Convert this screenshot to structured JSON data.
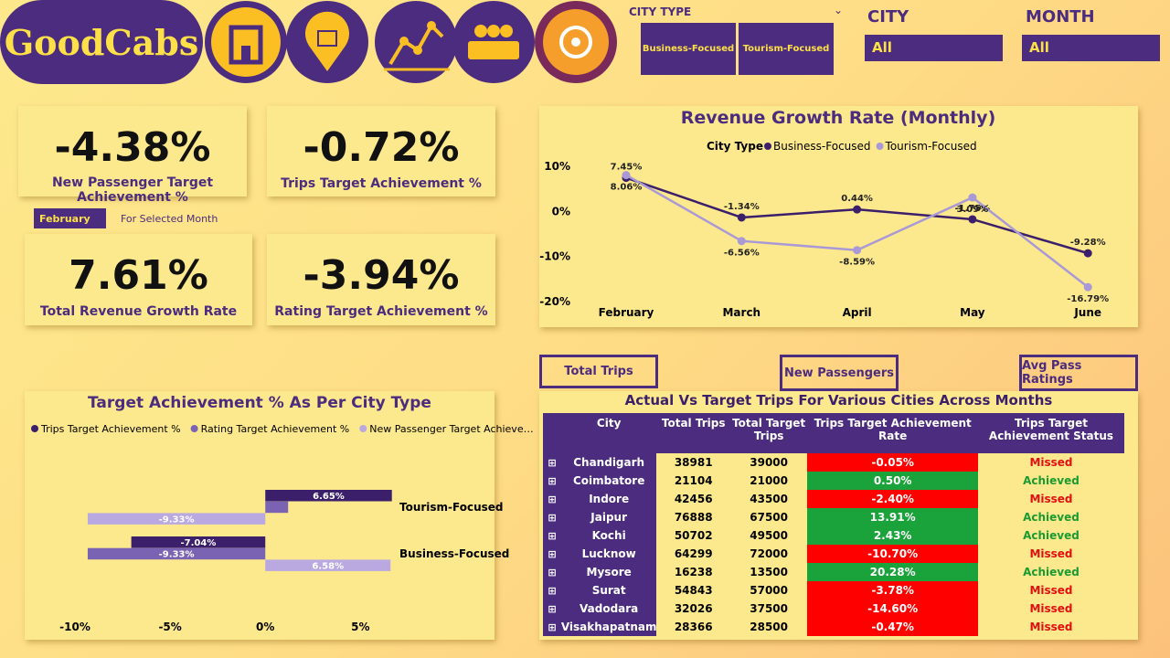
{
  "header": {
    "logo": "GoodCabs"
  },
  "filters": {
    "city_type_label": "CITY TYPE",
    "city_type_options": [
      "Business-Focused",
      "Tourism-Focused"
    ],
    "city_label": "CITY",
    "city_value": "All",
    "month_label": "MONTH",
    "month_value": "All",
    "selected_month": "February",
    "selected_month_note": "For Selected Month"
  },
  "kpis": [
    {
      "value": "-4.38%",
      "label": "New Passenger Target Achievement %"
    },
    {
      "value": "-0.72%",
      "label": "Trips Target Achievement %"
    },
    {
      "value": "7.61%",
      "label": "Total Revenue Growth Rate"
    },
    {
      "value": "-3.94%",
      "label": "Rating Target Achievement %"
    }
  ],
  "buttons": [
    "Total Trips",
    "New Passengers",
    "Avg Pass Ratings"
  ],
  "chart_data": [
    {
      "type": "line",
      "title": "Revenue Growth Rate (Monthly)",
      "legend_title": "City Type",
      "categories": [
        "February",
        "March",
        "April",
        "May",
        "June"
      ],
      "series": [
        {
          "name": "Business-Focused",
          "color": "#3b1f6b",
          "values": [
            7.45,
            -1.34,
            0.44,
            -1.75,
            -9.28
          ],
          "value_labels": [
            "7.45%",
            "-1.34%",
            "0.44%",
            "-1.75%",
            "-9.28%"
          ]
        },
        {
          "name": "Tourism-Focused",
          "color": "#a999d6",
          "values": [
            8.06,
            -6.56,
            -8.59,
            3.09,
            -16.79
          ],
          "value_labels": [
            "8.06%",
            "-6.56%",
            "-8.59%",
            "3.09%",
            "-16.79%"
          ]
        }
      ],
      "ylim": [
        -20,
        10
      ],
      "yticks": [
        {
          "value": -20,
          "label": "-20%"
        },
        {
          "value": -10,
          "label": "-10%"
        },
        {
          "value": 0,
          "label": "0%"
        },
        {
          "value": 10,
          "label": "10%"
        }
      ]
    },
    {
      "type": "hbar",
      "title": "Target Achievement % As Per City Type",
      "categories": [
        "Tourism-Focused",
        "Business-Focused"
      ],
      "series": [
        {
          "name": "Trips Target Achievement %",
          "color": "#3b1f6b",
          "values": [
            6.65,
            -7.04
          ],
          "value_labels": [
            "6.65%",
            "-7.04%"
          ]
        },
        {
          "name": "Rating Target Achievement %",
          "color": "#7b63b3",
          "values": [
            1.2,
            -9.33
          ],
          "value_labels": [
            null,
            "-9.33%"
          ]
        },
        {
          "name": "New Passenger Target Achieve…",
          "color": "#b9a9e0",
          "values": [
            -9.33,
            6.58
          ],
          "value_labels": [
            "-9.33%",
            "6.58%"
          ]
        }
      ],
      "xlim": [
        -10,
        7
      ],
      "xticks": [
        {
          "value": -10,
          "label": "-10%"
        },
        {
          "value": -5,
          "label": "-5%"
        },
        {
          "value": 0,
          "label": "0%"
        },
        {
          "value": 5,
          "label": "5%"
        }
      ]
    }
  ],
  "table": {
    "title": "Actual Vs Target Trips For Various Cities Across Months",
    "columns": [
      "City",
      "Total Trips",
      "Total Target Trips",
      "Trips Target Achievement Rate",
      "Trips Target Achievement Status"
    ],
    "status_colors": {
      "Missed": "#ff0000",
      "Achieved": "#1aa33a"
    },
    "status_text_colors": {
      "Missed": "#e01010",
      "Achieved": "#1a9a30"
    },
    "rows": [
      [
        "Chandigarh",
        "38981",
        "39000",
        "-0.05%",
        "Missed"
      ],
      [
        "Coimbatore",
        "21104",
        "21000",
        "0.50%",
        "Achieved"
      ],
      [
        "Indore",
        "42456",
        "43500",
        "-2.40%",
        "Missed"
      ],
      [
        "Jaipur",
        "76888",
        "67500",
        "13.91%",
        "Achieved"
      ],
      [
        "Kochi",
        "50702",
        "49500",
        "2.43%",
        "Achieved"
      ],
      [
        "Lucknow",
        "64299",
        "72000",
        "-10.70%",
        "Missed"
      ],
      [
        "Mysore",
        "16238",
        "13500",
        "20.28%",
        "Achieved"
      ],
      [
        "Surat",
        "54843",
        "57000",
        "-3.78%",
        "Missed"
      ],
      [
        "Vadodara",
        "32026",
        "37500",
        "-14.60%",
        "Missed"
      ],
      [
        "Visakhapatnam",
        "28366",
        "28500",
        "-0.47%",
        "Missed"
      ]
    ]
  }
}
